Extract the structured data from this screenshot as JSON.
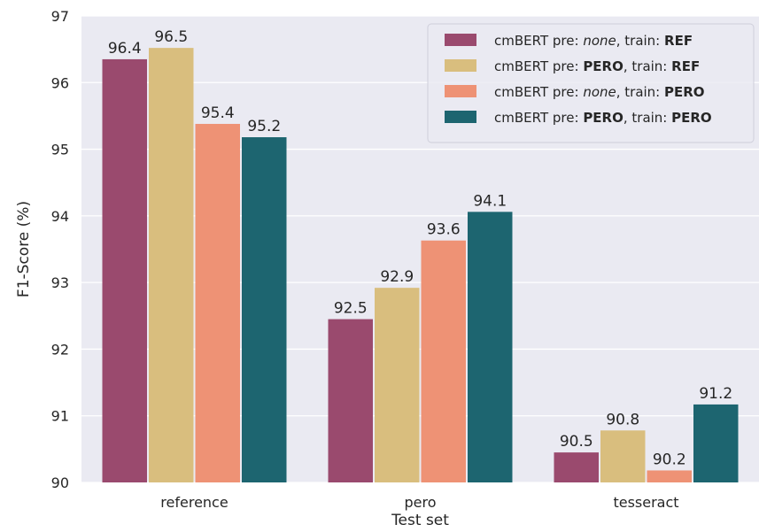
{
  "chart_data": {
    "type": "bar",
    "xlabel": "Test set",
    "ylabel": "F1-Score (%)",
    "ylim": [
      90,
      97
    ],
    "yticks": [
      90,
      91,
      92,
      93,
      94,
      95,
      96,
      97
    ],
    "grid": true,
    "background": "#EAEAF2",
    "legend_position": "top-right",
    "categories": [
      "reference",
      "pero",
      "tesseract"
    ],
    "series": [
      {
        "name": "cmBERT pre: none, train: REF",
        "name_parts": [
          {
            "text": "cmBERT pre: ",
            "style": "normal"
          },
          {
            "text": "none",
            "style": "italic"
          },
          {
            "text": ", train: ",
            "style": "normal"
          },
          {
            "text": "REF",
            "style": "bold"
          }
        ],
        "color": "#9A4A6E",
        "values": [
          96.35,
          92.45,
          90.45
        ],
        "labels": [
          "96.4",
          "92.5",
          "90.5"
        ]
      },
      {
        "name": "cmBERT pre: PERO, train: REF",
        "name_parts": [
          {
            "text": "cmBERT pre: ",
            "style": "normal"
          },
          {
            "text": "PERO",
            "style": "bold"
          },
          {
            "text": ", train: ",
            "style": "normal"
          },
          {
            "text": "REF",
            "style": "bold"
          }
        ],
        "color": "#D9BE7E",
        "values": [
          96.52,
          92.92,
          90.78
        ],
        "labels": [
          "96.5",
          "92.9",
          "90.8"
        ]
      },
      {
        "name": "cmBERT pre: none, train: PERO",
        "name_parts": [
          {
            "text": "cmBERT pre: ",
            "style": "normal"
          },
          {
            "text": "none",
            "style": "italic"
          },
          {
            "text": ", train: ",
            "style": "normal"
          },
          {
            "text": "PERO",
            "style": "bold"
          }
        ],
        "color": "#EE9275",
        "values": [
          95.38,
          93.63,
          90.18
        ],
        "labels": [
          "95.4",
          "93.6",
          "90.2"
        ]
      },
      {
        "name": "cmBERT pre: PERO, train: PERO",
        "name_parts": [
          {
            "text": "cmBERT pre: ",
            "style": "normal"
          },
          {
            "text": "PERO",
            "style": "bold"
          },
          {
            "text": ", train: ",
            "style": "normal"
          },
          {
            "text": "PERO",
            "style": "bold"
          }
        ],
        "color": "#1D6570",
        "values": [
          95.18,
          94.06,
          91.17
        ],
        "labels": [
          "95.2",
          "94.1",
          "91.2"
        ]
      }
    ]
  }
}
